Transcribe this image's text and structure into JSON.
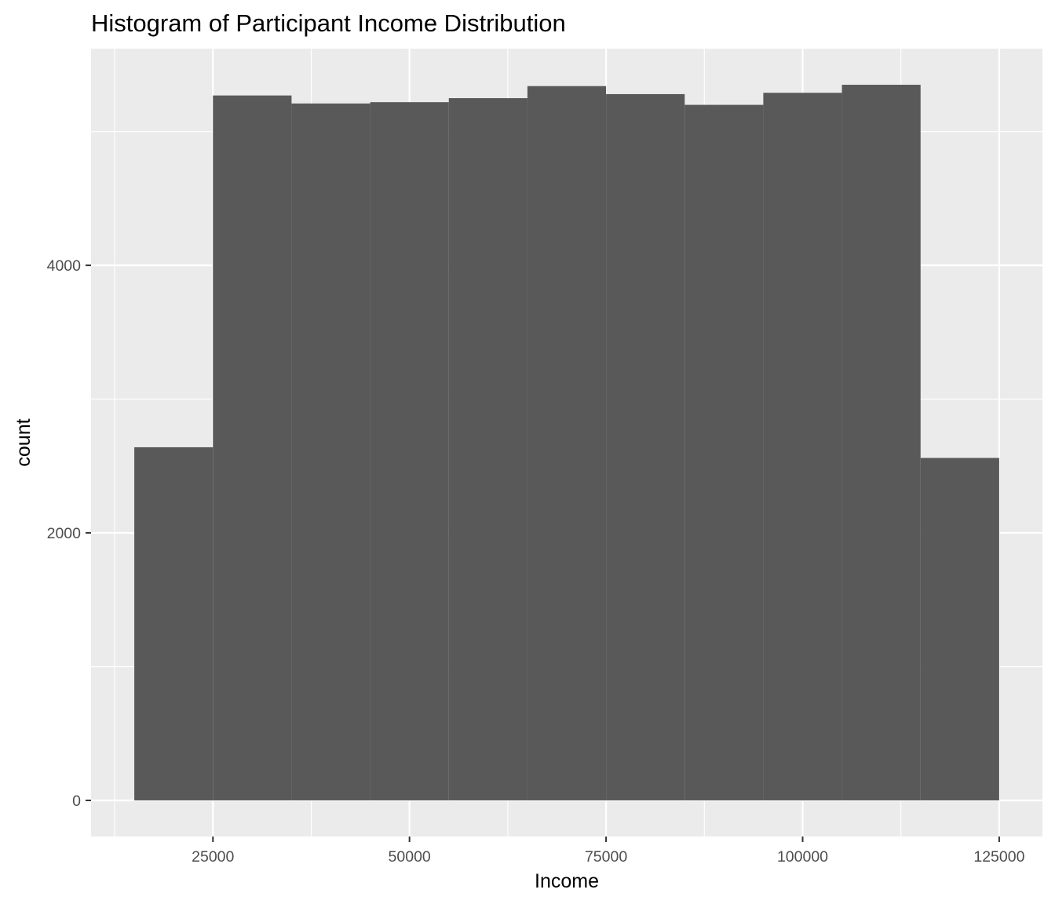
{
  "chart_data": {
    "type": "bar",
    "title": "Histogram of Participant Income Distribution",
    "xlabel": "Income",
    "ylabel": "count",
    "bin_edges": [
      15000,
      25000,
      35000,
      45000,
      55000,
      65000,
      75000,
      85000,
      95000,
      105000,
      115000,
      125000
    ],
    "values": [
      2640,
      5270,
      5210,
      5220,
      5250,
      5340,
      5280,
      5200,
      5290,
      5350,
      2560
    ],
    "xlim": [
      9500,
      130500
    ],
    "ylim": [
      -270,
      5620
    ],
    "x_ticks": [
      25000,
      50000,
      75000,
      100000,
      125000
    ],
    "x_tick_labels": [
      "25000",
      "50000",
      "75000",
      "100000",
      "125000"
    ],
    "x_minor_ticks": [
      12500,
      37500,
      62500,
      87500,
      112500
    ],
    "y_ticks": [
      0,
      2000,
      4000
    ],
    "y_tick_labels": [
      "0",
      "2000",
      "4000"
    ],
    "y_minor_ticks": [
      1000,
      3000,
      5000
    ],
    "grid": true,
    "legend": "none",
    "colors": {
      "bar": "#595959",
      "panel": "#ebebeb",
      "grid": "#ffffff",
      "tick": "#333333",
      "tick_label": "#4d4d4d"
    }
  }
}
